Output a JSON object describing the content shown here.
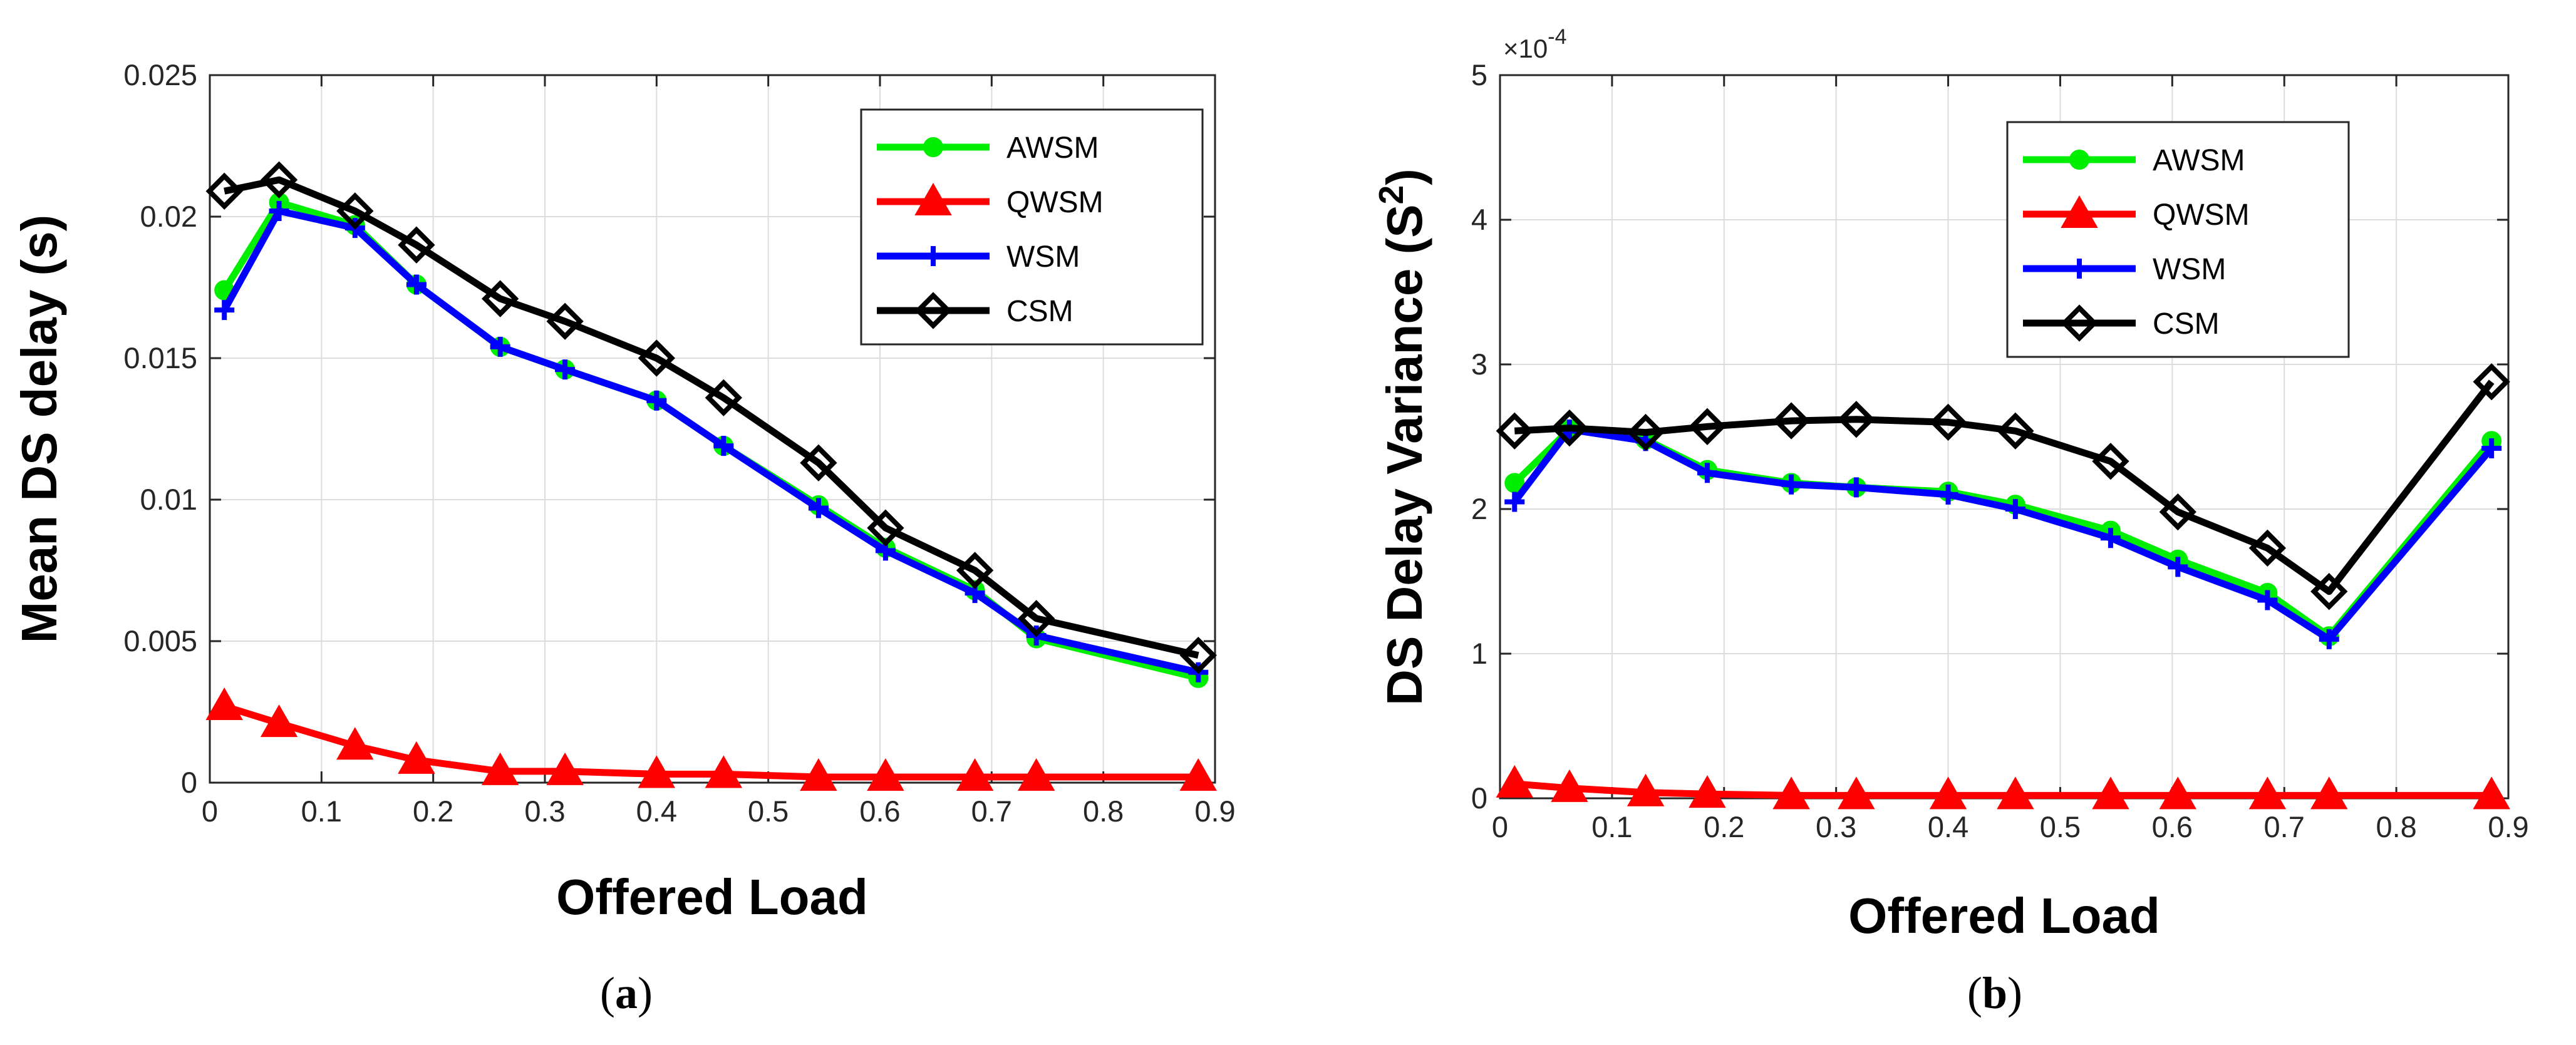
{
  "chart_data": [
    {
      "type": "line",
      "panel": "a",
      "caption": "(a)",
      "caption_letter": "a",
      "xlabel": "Offered Load",
      "ylabel": "Mean DS delay (s)",
      "xlim": [
        0,
        0.9
      ],
      "ylim": [
        0,
        0.025
      ],
      "xticks": [
        0,
        0.1,
        0.2,
        0.3,
        0.4,
        0.5,
        0.6,
        0.7,
        0.8,
        0.9
      ],
      "xtick_labels": [
        "0",
        "0.1",
        "0.2",
        "0.3",
        "0.4",
        "0.5",
        "0.6",
        "0.7",
        "0.8",
        "0.9"
      ],
      "yticks": [
        0,
        0.005,
        0.01,
        0.015,
        0.02,
        0.025
      ],
      "ytick_labels": [
        "0",
        "0.005",
        "0.01",
        "0.015",
        "0.02",
        "0.025"
      ],
      "grid": true,
      "legend_position": "top-right",
      "x": [
        0.013,
        0.062,
        0.13,
        0.185,
        0.26,
        0.318,
        0.4,
        0.46,
        0.545,
        0.605,
        0.685,
        0.74,
        0.885
      ],
      "series": [
        {
          "name": "AWSM",
          "color": "#00ee00",
          "marker": "circle",
          "values": [
            0.0174,
            0.0205,
            0.0197,
            0.0176,
            0.0154,
            0.0146,
            0.0135,
            0.0119,
            0.0098,
            0.0083,
            0.0068,
            0.0051,
            0.0037
          ]
        },
        {
          "name": "QWSM",
          "color": "#ff0000",
          "marker": "triangle",
          "values": [
            0.0027,
            0.0021,
            0.0013,
            0.0008,
            0.0004,
            0.0004,
            0.0003,
            0.0003,
            0.0002,
            0.0002,
            0.0002,
            0.0002,
            0.0002
          ]
        },
        {
          "name": "WSM",
          "color": "#0000ff",
          "marker": "plus",
          "values": [
            0.0167,
            0.0202,
            0.0196,
            0.0176,
            0.0154,
            0.0146,
            0.0135,
            0.0119,
            0.0097,
            0.0082,
            0.0067,
            0.0052,
            0.0039
          ]
        },
        {
          "name": "CSM",
          "color": "#000000",
          "marker": "diamond",
          "values": [
            0.0209,
            0.0213,
            0.0202,
            0.019,
            0.0171,
            0.0163,
            0.015,
            0.0136,
            0.0113,
            0.009,
            0.0075,
            0.0058,
            0.0045
          ]
        }
      ]
    },
    {
      "type": "line",
      "panel": "b",
      "caption": "(b)",
      "caption_letter": "b",
      "xlabel": "Offered Load",
      "ylabel": "DS Delay Variance (S",
      "ylabel_sup": "2",
      "ylabel_end": ")",
      "exponent_label": "×10",
      "exponent_power": "-4",
      "xlim": [
        0,
        0.9
      ],
      "ylim": [
        0,
        5
      ],
      "xticks": [
        0,
        0.1,
        0.2,
        0.3,
        0.4,
        0.5,
        0.6,
        0.7,
        0.8,
        0.9
      ],
      "xtick_labels": [
        "0",
        "0.1",
        "0.2",
        "0.3",
        "0.4",
        "0.5",
        "0.6",
        "0.7",
        "0.8",
        "0.9"
      ],
      "yticks": [
        0,
        1,
        2,
        3,
        4,
        5
      ],
      "ytick_labels": [
        "0",
        "1",
        "2",
        "3",
        "4",
        "5"
      ],
      "grid": true,
      "legend_position": "top-center",
      "x": [
        0.013,
        0.062,
        0.13,
        0.185,
        0.26,
        0.318,
        0.4,
        0.46,
        0.545,
        0.605,
        0.685,
        0.74,
        0.885
      ],
      "series": [
        {
          "name": "AWSM",
          "color": "#00ee00",
          "marker": "circle",
          "values": [
            2.18,
            2.55,
            2.48,
            2.27,
            2.18,
            2.15,
            2.12,
            2.03,
            1.85,
            1.65,
            1.42,
            1.12,
            2.47
          ]
        },
        {
          "name": "QWSM",
          "color": "#ff0000",
          "marker": "triangle",
          "values": [
            0.1,
            0.07,
            0.04,
            0.03,
            0.02,
            0.02,
            0.02,
            0.02,
            0.02,
            0.02,
            0.02,
            0.02,
            0.02
          ]
        },
        {
          "name": "WSM",
          "color": "#0000ff",
          "marker": "plus",
          "values": [
            2.05,
            2.55,
            2.47,
            2.25,
            2.17,
            2.15,
            2.1,
            2.0,
            1.8,
            1.6,
            1.37,
            1.1,
            2.42
          ]
        },
        {
          "name": "CSM",
          "color": "#000000",
          "marker": "diamond",
          "values": [
            2.54,
            2.56,
            2.53,
            2.57,
            2.61,
            2.62,
            2.6,
            2.54,
            2.33,
            1.98,
            1.73,
            1.43,
            2.88
          ]
        }
      ]
    }
  ]
}
